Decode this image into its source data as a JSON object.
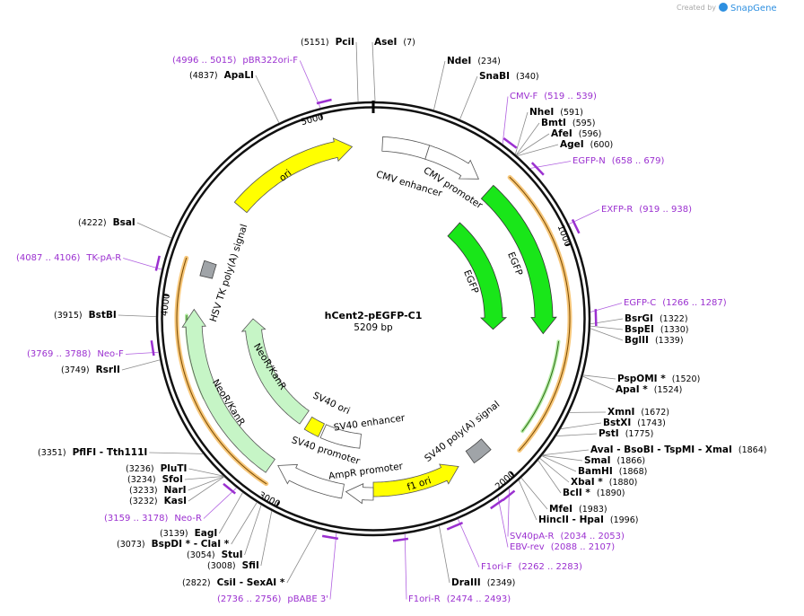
{
  "header": {
    "credit": "Created by",
    "brand": "SnapGene"
  },
  "map": {
    "name": "hCent2-pEGFP-C1",
    "size": "5209 bp",
    "ticks": [
      1000,
      2000,
      3000,
      4000,
      5000
    ],
    "features": [
      "ori",
      "CMV enhancer",
      "CMV promoter",
      "EGFP",
      "EGFP",
      "HSV TK poly(A) signal",
      "NeoR/KanR",
      "NeoR/KanR",
      "SV40 ori",
      "SV40 enhancer",
      "SV40 promoter",
      "AmpR promoter",
      "f1 ori",
      "SV40 poly(A) signal"
    ],
    "enzymes": [
      {
        "name": "PciI",
        "position": "(5151)"
      },
      {
        "name": "AseI",
        "position": "(7)"
      },
      {
        "name": "NdeI",
        "position": "(234)"
      },
      {
        "name": "SnaBI",
        "position": "(340)"
      },
      {
        "name": "NheI",
        "position": "(591)"
      },
      {
        "name": "BmtI",
        "position": "(595)"
      },
      {
        "name": "AfeI",
        "position": "(596)"
      },
      {
        "name": "AgeI",
        "position": "(600)"
      },
      {
        "name": "BsrGI",
        "position": "(1322)"
      },
      {
        "name": "BspEI",
        "position": "(1330)"
      },
      {
        "name": "BglII",
        "position": "(1339)"
      },
      {
        "name": "PspOMI *",
        "position": "(1520)"
      },
      {
        "name": "ApaI *",
        "position": "(1524)"
      },
      {
        "name": "XmnI",
        "position": "(1672)"
      },
      {
        "name": "BstXI",
        "position": "(1743)"
      },
      {
        "name": "PstI",
        "position": "(1775)"
      },
      {
        "name": "AvaI - BsoBI - TspMI - XmaI",
        "position": "(1864)"
      },
      {
        "name": "SmaI",
        "position": "(1866)"
      },
      {
        "name": "BamHI",
        "position": "(1868)"
      },
      {
        "name": "XbaI *",
        "position": "(1880)"
      },
      {
        "name": "BclI *",
        "position": "(1890)"
      },
      {
        "name": "MfeI",
        "position": "(1983)"
      },
      {
        "name": "HincII - HpaI",
        "position": "(1996)"
      },
      {
        "name": "DraIII",
        "position": "(2349)"
      },
      {
        "name": "CsiI - SexAI *",
        "position": "(2822)"
      },
      {
        "name": "SfiI",
        "position": "(3008)"
      },
      {
        "name": "StuI",
        "position": "(3054)"
      },
      {
        "name": "BspDI * - ClaI *",
        "position": "(3073)"
      },
      {
        "name": "EagI",
        "position": "(3139)"
      },
      {
        "name": "KasI",
        "position": "(3232)"
      },
      {
        "name": "NarI",
        "position": "(3233)"
      },
      {
        "name": "SfoI",
        "position": "(3234)"
      },
      {
        "name": "PluTI",
        "position": "(3236)"
      },
      {
        "name": "PflFI - Tth111I",
        "position": "(3351)"
      },
      {
        "name": "RsrII",
        "position": "(3749)"
      },
      {
        "name": "BstBI",
        "position": "(3915)"
      },
      {
        "name": "BsaI",
        "position": "(4222)"
      },
      {
        "name": "ApaLI",
        "position": "(4837)"
      }
    ],
    "primers": [
      {
        "name": "pBR322ori-F",
        "range": "(4996 .. 5015)"
      },
      {
        "name": "CMV-F",
        "range": "(519 .. 539)"
      },
      {
        "name": "EGFP-N",
        "range": "(658 .. 679)"
      },
      {
        "name": "EXFP-R",
        "range": "(919 .. 938)"
      },
      {
        "name": "EGFP-C",
        "range": "(1266 .. 1287)"
      },
      {
        "name": "SV40pA-R",
        "range": "(2034 .. 2053)"
      },
      {
        "name": "EBV-rev",
        "range": "(2088 .. 2107)"
      },
      {
        "name": "F1ori-F",
        "range": "(2262 .. 2283)"
      },
      {
        "name": "F1ori-R",
        "range": "(2474 .. 2493)"
      },
      {
        "name": "pBABE 3'",
        "range": "(2736 .. 2756)"
      },
      {
        "name": "Neo-R",
        "range": "(3159 .. 3178)"
      },
      {
        "name": "Neo-F",
        "range": "(3769 .. 3788)"
      },
      {
        "name": "TK-pA-R",
        "range": "(4087 .. 4106)"
      }
    ]
  }
}
